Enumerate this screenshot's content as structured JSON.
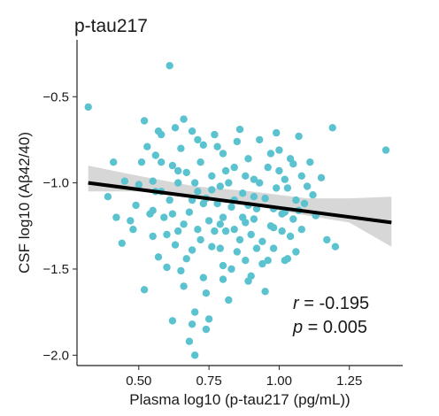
{
  "chart_data": {
    "type": "scatter",
    "title": "p-tau217",
    "xlabel": "Plasma log10 (p-tau217 (pg/mL))",
    "ylabel": "CSF log10 (Aβ42/40)",
    "xlim": [
      0.28,
      1.44
    ],
    "ylim": [
      -2.06,
      -0.17
    ],
    "xticks": [
      0.5,
      0.75,
      1.0,
      1.25
    ],
    "xtick_labels": [
      "0.50",
      "0.75",
      "1.00",
      "1.25"
    ],
    "yticks": [
      -2.0,
      -1.5,
      -1.0,
      -0.5
    ],
    "ytick_labels": [
      "−2.0",
      "−1.5",
      "−1.0",
      "−0.5"
    ],
    "grid": false,
    "colors": {
      "points": "#5bc3cf",
      "fit_line": "#000000",
      "ci_band": "#d3d3d3"
    },
    "annotations": {
      "r_symbol": "r",
      "r_text": " = -0.195",
      "p_symbol": "p",
      "p_text": " = 0.005"
    },
    "fit_line": {
      "x": [
        0.32,
        1.4
      ],
      "y": [
        -1.0,
        -1.23
      ]
    },
    "ci_band": {
      "x": [
        0.32,
        0.5,
        0.7,
        0.9,
        1.1,
        1.25,
        1.4
      ],
      "lower": [
        -1.05,
        -1.05,
        -1.08,
        -1.13,
        -1.19,
        -1.23,
        -1.37
      ],
      "upper": [
        -0.9,
        -0.96,
        -1.02,
        -1.05,
        -1.09,
        -1.09,
        -1.08
      ]
    },
    "points": [
      [
        0.32,
        -0.56
      ],
      [
        0.39,
        -1.08
      ],
      [
        0.41,
        -0.88
      ],
      [
        0.42,
        -1.2
      ],
      [
        0.44,
        -1.35
      ],
      [
        0.45,
        -0.99
      ],
      [
        0.47,
        -1.22
      ],
      [
        0.48,
        -1.27
      ],
      [
        0.49,
        -1.13
      ],
      [
        0.5,
        -1.01
      ],
      [
        0.51,
        -0.88
      ],
      [
        0.52,
        -0.64
      ],
      [
        0.52,
        -1.62
      ],
      [
        0.53,
        -0.79
      ],
      [
        0.54,
        -1.18
      ],
      [
        0.55,
        -0.99
      ],
      [
        0.55,
        -1.31
      ],
      [
        0.56,
        -1.05
      ],
      [
        0.57,
        -0.7
      ],
      [
        0.57,
        -1.43
      ],
      [
        0.58,
        -0.88
      ],
      [
        0.59,
        -1.2
      ],
      [
        0.6,
        -1.49
      ],
      [
        0.61,
        -0.32
      ],
      [
        0.61,
        -1.1
      ],
      [
        0.62,
        -0.9
      ],
      [
        0.63,
        -0.68
      ],
      [
        0.64,
        -1.28
      ],
      [
        0.64,
        -1.0
      ],
      [
        0.65,
        -0.8
      ],
      [
        0.66,
        -1.6
      ],
      [
        0.67,
        -0.94
      ],
      [
        0.68,
        -1.17
      ],
      [
        0.69,
        -1.39
      ],
      [
        0.69,
        -0.7
      ],
      [
        0.7,
        -1.75
      ],
      [
        0.7,
        -1.0
      ],
      [
        0.71,
        -1.27
      ],
      [
        0.72,
        -0.88
      ],
      [
        0.73,
        -1.55
      ],
      [
        0.73,
        -0.78
      ],
      [
        0.74,
        -1.09
      ],
      [
        0.75,
        -1.22
      ],
      [
        0.76,
        -0.96
      ],
      [
        0.76,
        -1.37
      ],
      [
        0.77,
        -0.72
      ],
      [
        0.78,
        -1.12
      ],
      [
        0.79,
        -1.02
      ],
      [
        0.8,
        -1.48
      ],
      [
        0.8,
        -0.83
      ],
      [
        0.81,
        -1.28
      ],
      [
        0.82,
        -1.0
      ],
      [
        0.83,
        -1.14
      ],
      [
        0.84,
        -0.91
      ],
      [
        0.85,
        -1.4
      ],
      [
        0.86,
        -0.69
      ],
      [
        0.87,
        -1.06
      ],
      [
        0.88,
        -1.23
      ],
      [
        0.89,
        -0.86
      ],
      [
        0.89,
        -1.57
      ],
      [
        0.9,
        -1.3
      ],
      [
        0.91,
        -0.98
      ],
      [
        0.92,
        -1.15
      ],
      [
        0.93,
        -0.75
      ],
      [
        0.94,
        -1.47
      ],
      [
        0.95,
        -1.09
      ],
      [
        0.96,
        -0.91
      ],
      [
        0.97,
        -1.25
      ],
      [
        0.98,
        -1.38
      ],
      [
        0.99,
        -1.03
      ],
      [
        1.0,
        -0.81
      ],
      [
        1.01,
        -1.18
      ],
      [
        1.02,
        -0.98
      ],
      [
        1.03,
        -1.44
      ],
      [
        1.04,
        -1.31
      ],
      [
        1.05,
        -0.89
      ],
      [
        1.06,
        -1.1
      ],
      [
        1.07,
        -0.73
      ],
      [
        1.08,
        -1.27
      ],
      [
        1.1,
        -1.02
      ],
      [
        1.11,
        -0.88
      ],
      [
        1.13,
        -1.19
      ],
      [
        1.15,
        -0.97
      ],
      [
        1.17,
        -1.33
      ],
      [
        1.19,
        -0.68
      ],
      [
        1.2,
        -1.37
      ],
      [
        1.38,
        -0.81
      ],
      [
        0.63,
        -1.36
      ],
      [
        0.65,
        -1.51
      ],
      [
        0.66,
        -0.63
      ],
      [
        0.69,
        -1.1
      ],
      [
        0.72,
        -1.33
      ],
      [
        0.74,
        -1.64
      ],
      [
        0.76,
        -1.04
      ],
      [
        0.78,
        -0.79
      ],
      [
        0.8,
        -1.2
      ],
      [
        0.82,
        -1.68
      ],
      [
        0.84,
        -1.1
      ],
      [
        0.86,
        -1.33
      ],
      [
        0.88,
        -0.96
      ],
      [
        0.92,
        -1.38
      ],
      [
        0.95,
        -1.63
      ],
      [
        0.98,
        -1.15
      ],
      [
        1.0,
        -0.93
      ],
      [
        1.02,
        -1.45
      ],
      [
        1.05,
        -1.21
      ],
      [
        1.08,
        -0.96
      ],
      [
        0.58,
        -1.05
      ],
      [
        0.6,
        -1.3
      ],
      [
        0.62,
        -1.18
      ],
      [
        0.67,
        -1.44
      ],
      [
        0.71,
        -1.05
      ],
      [
        0.75,
        -1.79
      ],
      [
        0.79,
        -1.24
      ],
      [
        0.83,
        -1.5
      ],
      [
        0.87,
        -1.2
      ],
      [
        0.91,
        -1.08
      ],
      [
        0.94,
        -1.34
      ],
      [
        0.97,
        -0.83
      ],
      [
        1.01,
        -1.28
      ],
      [
        1.04,
        -0.86
      ],
      [
        1.07,
        -1.16
      ],
      [
        1.12,
        -1.07
      ],
      [
        0.68,
        -1.92
      ],
      [
        0.69,
        -1.82
      ],
      [
        0.7,
        -2.0
      ],
      [
        0.62,
        -1.8
      ],
      [
        0.74,
        -1.85
      ],
      [
        0.8,
        -1.56
      ],
      [
        0.85,
        -0.76
      ],
      [
        0.9,
        -1.54
      ],
      [
        0.96,
        -1.45
      ],
      [
        0.99,
        -0.71
      ],
      [
        0.56,
        -0.84
      ],
      [
        0.58,
        -0.72
      ],
      [
        0.73,
        -1.12
      ],
      [
        0.77,
        -1.28
      ],
      [
        0.81,
        -0.93
      ],
      [
        0.93,
        -1.0
      ],
      [
        1.03,
        -1.03
      ],
      [
        1.06,
        -1.4
      ],
      [
        0.55,
        -1.16
      ],
      [
        0.66,
        -1.24
      ],
      [
        0.71,
        -0.75
      ],
      [
        0.84,
        -1.27
      ],
      [
        0.89,
        -1.13
      ],
      [
        1.09,
        -1.12
      ],
      [
        0.64,
        -0.93
      ],
      [
        0.79,
        -1.38
      ],
      [
        0.88,
        -1.45
      ],
      [
        0.91,
        -1.21
      ],
      [
        0.98,
        -1.26
      ],
      [
        1.02,
        -1.17
      ]
    ]
  }
}
